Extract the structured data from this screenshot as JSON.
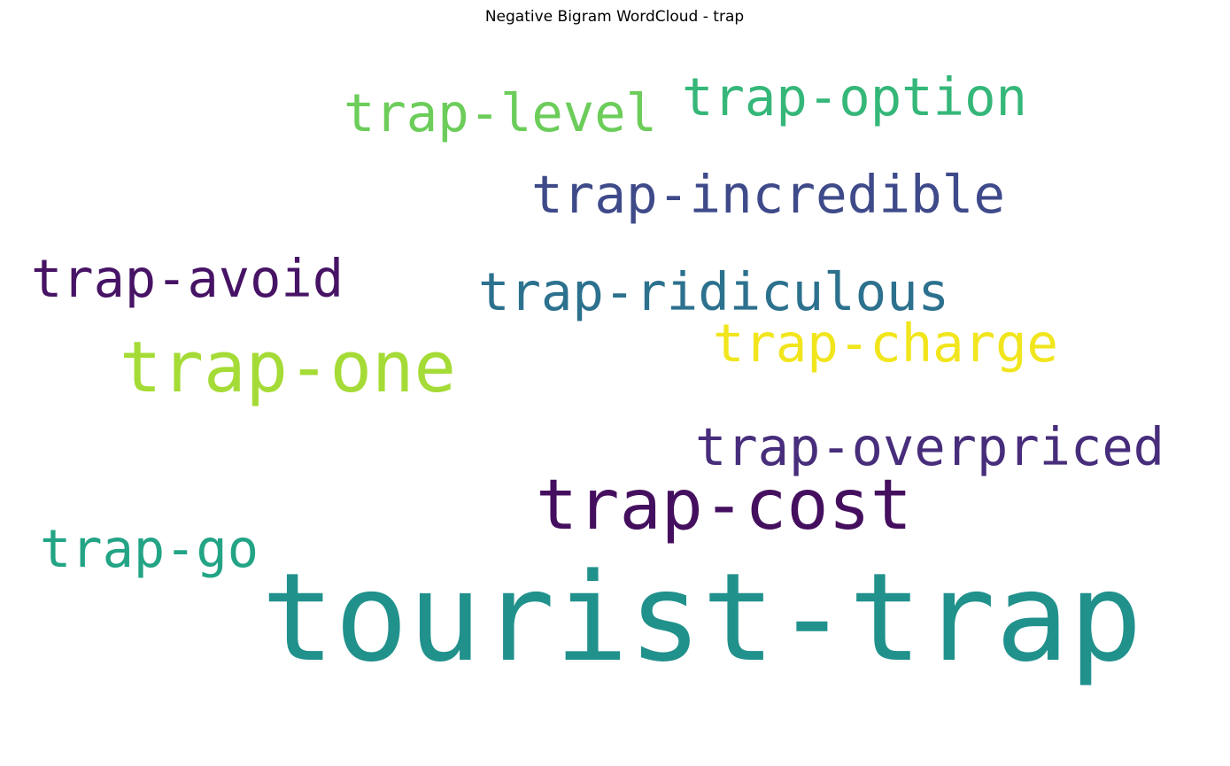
{
  "chart_data": {
    "type": "wordcloud",
    "title": "Negative Bigram WordCloud - trap",
    "words": [
      {
        "text": "tourist-trap",
        "color": "#21918c"
      },
      {
        "text": "trap-cost",
        "color": "#450f5f"
      },
      {
        "text": "trap-go",
        "color": "#22a485"
      },
      {
        "text": "trap-overpriced",
        "color": "#472d7b"
      },
      {
        "text": "trap-one",
        "color": "#a5db36"
      },
      {
        "text": "trap-charge",
        "color": "#f1e51d"
      },
      {
        "text": "trap-ridiculous",
        "color": "#2c718e"
      },
      {
        "text": "trap-avoid",
        "color": "#471365"
      },
      {
        "text": "trap-incredible",
        "color": "#3e4a89"
      },
      {
        "text": "trap-level",
        "color": "#6ccd5a"
      },
      {
        "text": "trap-option",
        "color": "#35b779"
      }
    ]
  }
}
